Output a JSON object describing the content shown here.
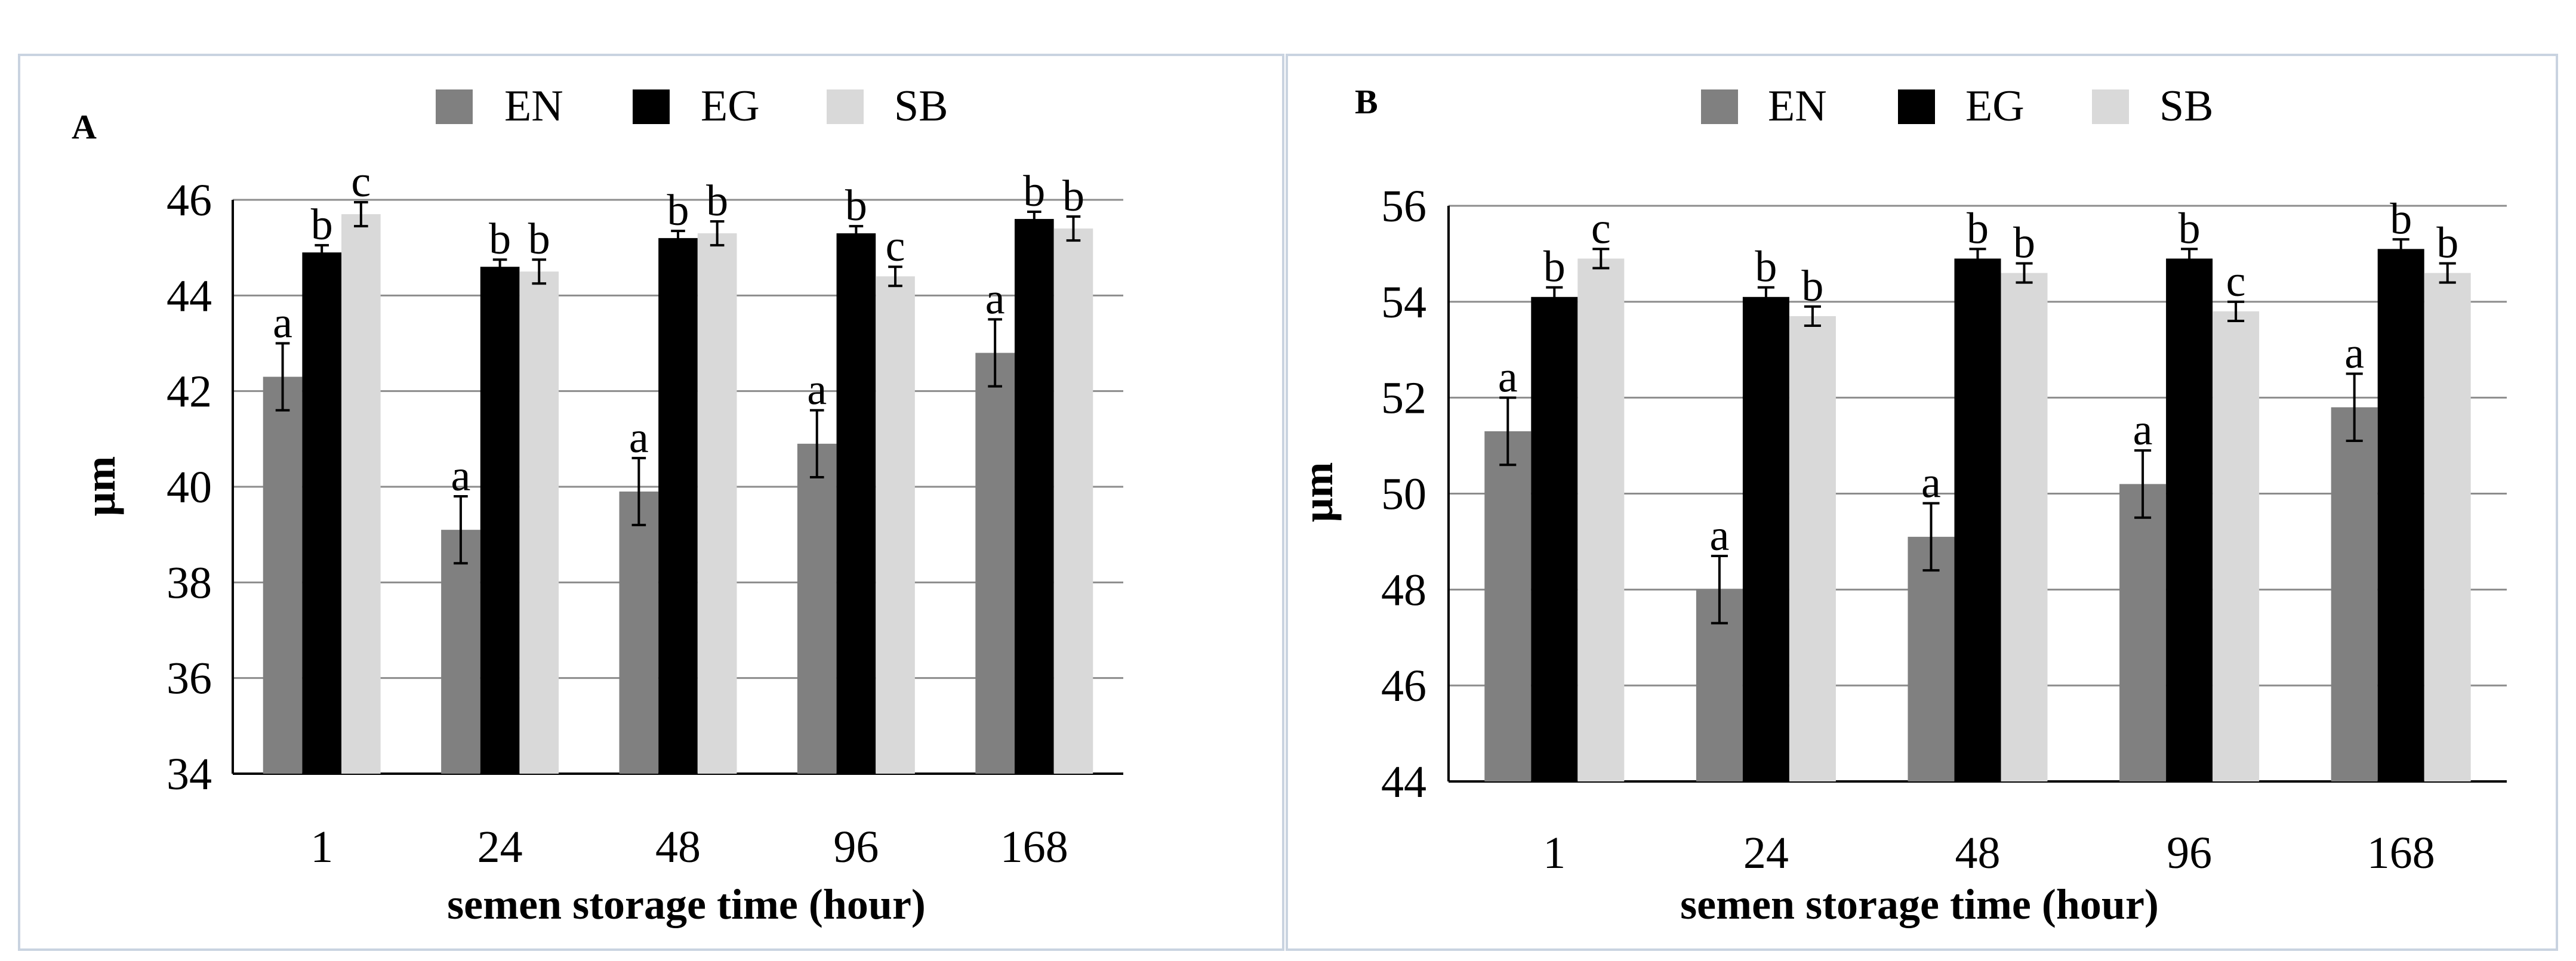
{
  "chart_data": [
    {
      "type": "bar",
      "panel_label": "A",
      "ylabel": "μm",
      "xlabel": "semen storage time (hour)",
      "ylim": [
        34,
        46
      ],
      "yticks": [
        34,
        36,
        38,
        40,
        42,
        44,
        46
      ],
      "grid": true,
      "legend_position": "top",
      "categories": [
        "1",
        "24",
        "48",
        "96",
        "168"
      ],
      "series": [
        {
          "name": "EN",
          "color": "#808080",
          "values": [
            42.3,
            39.1,
            39.9,
            40.9,
            42.8
          ],
          "errors": [
            0.7,
            0.7,
            0.7,
            0.7,
            0.7
          ],
          "letters": [
            "a",
            "a",
            "a",
            "a",
            "a"
          ]
        },
        {
          "name": "EG",
          "color": "#000000",
          "values": [
            44.9,
            44.6,
            45.2,
            45.3,
            45.6
          ],
          "errors": [
            0.15,
            0.15,
            0.15,
            0.15,
            0.15
          ],
          "letters": [
            "b",
            "b",
            "b",
            "b",
            "b"
          ]
        },
        {
          "name": "SB",
          "color": "#d9d9d9",
          "values": [
            45.7,
            44.5,
            45.3,
            44.4,
            45.4
          ],
          "errors": [
            0.25,
            0.25,
            0.25,
            0.2,
            0.25
          ],
          "letters": [
            "c",
            "b",
            "b",
            "c",
            "b"
          ]
        }
      ]
    },
    {
      "type": "bar",
      "panel_label": "B",
      "ylabel": "μm",
      "xlabel": "semen storage time (hour)",
      "ylim": [
        44,
        56
      ],
      "yticks": [
        44,
        46,
        48,
        50,
        52,
        54,
        56
      ],
      "grid": true,
      "legend_position": "top",
      "categories": [
        "1",
        "24",
        "48",
        "96",
        "168"
      ],
      "series": [
        {
          "name": "EN",
          "color": "#808080",
          "values": [
            51.3,
            48.0,
            49.1,
            50.2,
            51.8
          ],
          "errors": [
            0.7,
            0.7,
            0.7,
            0.7,
            0.7
          ],
          "letters": [
            "a",
            "a",
            "a",
            "a",
            "a"
          ]
        },
        {
          "name": "EG",
          "color": "#000000",
          "values": [
            54.1,
            54.1,
            54.9,
            54.9,
            55.1
          ],
          "errors": [
            0.2,
            0.2,
            0.2,
            0.2,
            0.2
          ],
          "letters": [
            "b",
            "b",
            "b",
            "b",
            "b"
          ]
        },
        {
          "name": "SB",
          "color": "#d9d9d9",
          "values": [
            54.9,
            53.7,
            54.6,
            53.8,
            54.6
          ],
          "errors": [
            0.2,
            0.2,
            0.2,
            0.2,
            0.2
          ],
          "letters": [
            "c",
            "b",
            "b",
            "c",
            "b"
          ]
        }
      ]
    }
  ]
}
